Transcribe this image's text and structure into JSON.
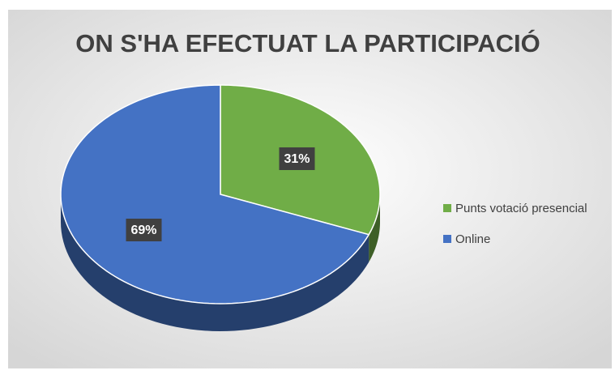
{
  "chart_data": {
    "type": "pie",
    "title": "ON S'HA EFECTUAT LA PARTICIPACIÓ",
    "categories": [
      "Punts votació presencial",
      "Online"
    ],
    "values": [
      31,
      69
    ],
    "value_labels": [
      "31%",
      "69%"
    ],
    "colors": [
      "#70ad47",
      "#4472c4"
    ],
    "legend": "right"
  }
}
